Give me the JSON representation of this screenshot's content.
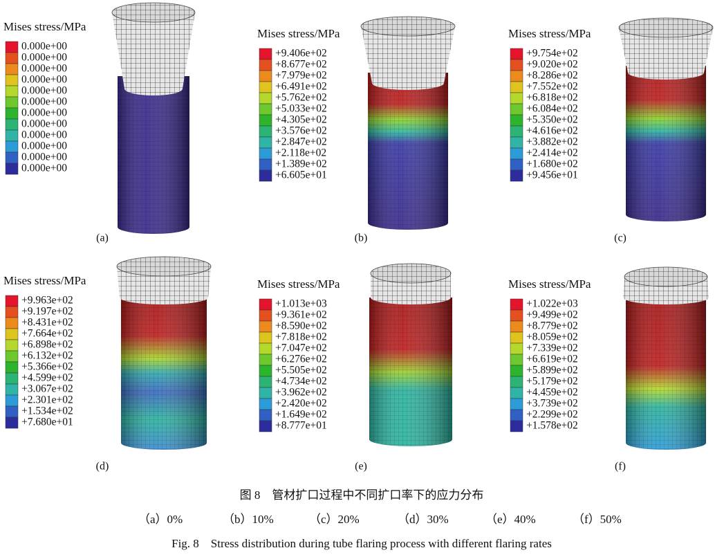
{
  "figure": {
    "panels": [
      {
        "label": "(a)",
        "legend_title": "Mises stress/MPa",
        "legend_values": [
          "0.000e+00",
          "0.000e+00",
          "0.000e+00",
          "0.000e+00",
          "0.000e+00",
          "0.000e+00",
          "0.000e+00",
          "0.000e+00",
          "0.000e+00",
          "0.000e+00",
          "0.000e+00",
          "0.000e+00"
        ]
      },
      {
        "label": "(b)",
        "legend_title": "Mises stress/MPa",
        "legend_values": [
          "+9.406e+02",
          "+8.677e+02",
          "+7.979e+02",
          "+6.491e+02",
          "+5.762e+02",
          "+5.033e+02",
          "+4.305e+02",
          "+3.576e+02",
          "+2.847e+02",
          "+2.118e+02",
          "+1.389e+02",
          "+6.605e+01"
        ]
      },
      {
        "label": "(c)",
        "legend_title": "Mises stress/MPa",
        "legend_values": [
          "+9.754e+02",
          "+9.020e+02",
          "+8.286e+02",
          "+7.552e+02",
          "+6.818e+02",
          "+6.084e+02",
          "+5.350e+02",
          "+4.616e+02",
          "+3.882e+02",
          "+2.414e+02",
          "+1.680e+02",
          "+9.456e+01"
        ]
      },
      {
        "label": "(d)",
        "legend_title": "Mises stress/MPa",
        "legend_values": [
          "+9.963e+02",
          "+9.197e+02",
          "+8.431e+02",
          "+7.664e+02",
          "+6.898e+02",
          "+6.132e+02",
          "+5.366e+02",
          "+4.599e+02",
          "+3.067e+02",
          "+2.301e+02",
          "+1.534e+02",
          "+7.680e+01"
        ]
      },
      {
        "label": "(e)",
        "legend_title": "Mises stress/MPa",
        "legend_values": [
          "+1.013e+03",
          "+9.361e+02",
          "+8.590e+02",
          "+7.818e+02",
          "+7.047e+02",
          "+6.276e+02",
          "+5.505e+02",
          "+4.734e+02",
          "+3.962e+02",
          "+2.420e+02",
          "+1.649e+02",
          "+8.777e+01"
        ]
      },
      {
        "label": "(f)",
        "legend_title": "Mises stress/MPa",
        "legend_values": [
          "+1.022e+03",
          "+9.499e+02",
          "+8.779e+02",
          "+8.059e+02",
          "+7.339e+02",
          "+6.619e+02",
          "+5.899e+02",
          "+5.179e+02",
          "+4.459e+02",
          "+3.739e+02",
          "+2.299e+02",
          "+1.578e+02"
        ]
      }
    ],
    "caption_zh": "图 8　管材扩口过程中不同扩口率下的应力分布",
    "rates": [
      "（a）0%",
      "（b）10%",
      "（c）20%",
      "（d）30%",
      "（e）40%",
      "（f）50%"
    ],
    "caption_en": "Fig. 8　Stress distribution during tube flaring process with different flaring rates"
  }
}
